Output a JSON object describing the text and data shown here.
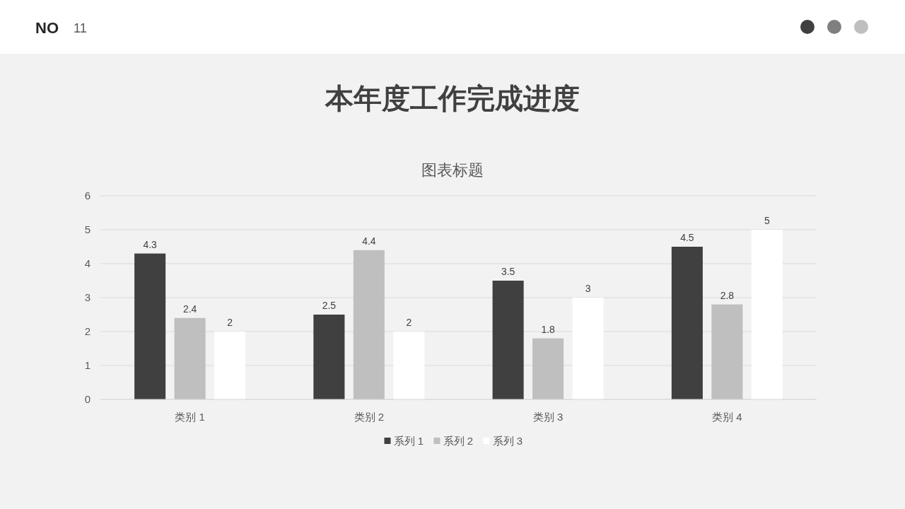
{
  "chart_data": {
    "type": "bar",
    "title": "本年度工作完成进度",
    "subtitle": "图表标题",
    "annotations": [
      "NO",
      "11"
    ],
    "categories": [
      "类别 1",
      "类别 2",
      "类别 3",
      "类别 4"
    ],
    "series": [
      {
        "name": "系列 1",
        "color": "#404040",
        "values": [
          4.3,
          2.5,
          3.5,
          4.5
        ]
      },
      {
        "name": "系列 2",
        "color": "#bfbfbf",
        "values": [
          2.4,
          4.4,
          1.8,
          2.8
        ]
      },
      {
        "name": "系列 3",
        "color": "#ffffff",
        "values": [
          2,
          2,
          3,
          5
        ]
      }
    ],
    "ylim": [
      0,
      6
    ],
    "yticks": [
      0,
      1,
      2,
      3,
      4,
      5,
      6
    ],
    "grid": "y",
    "legend": "bottom",
    "data_labels": true
  }
}
